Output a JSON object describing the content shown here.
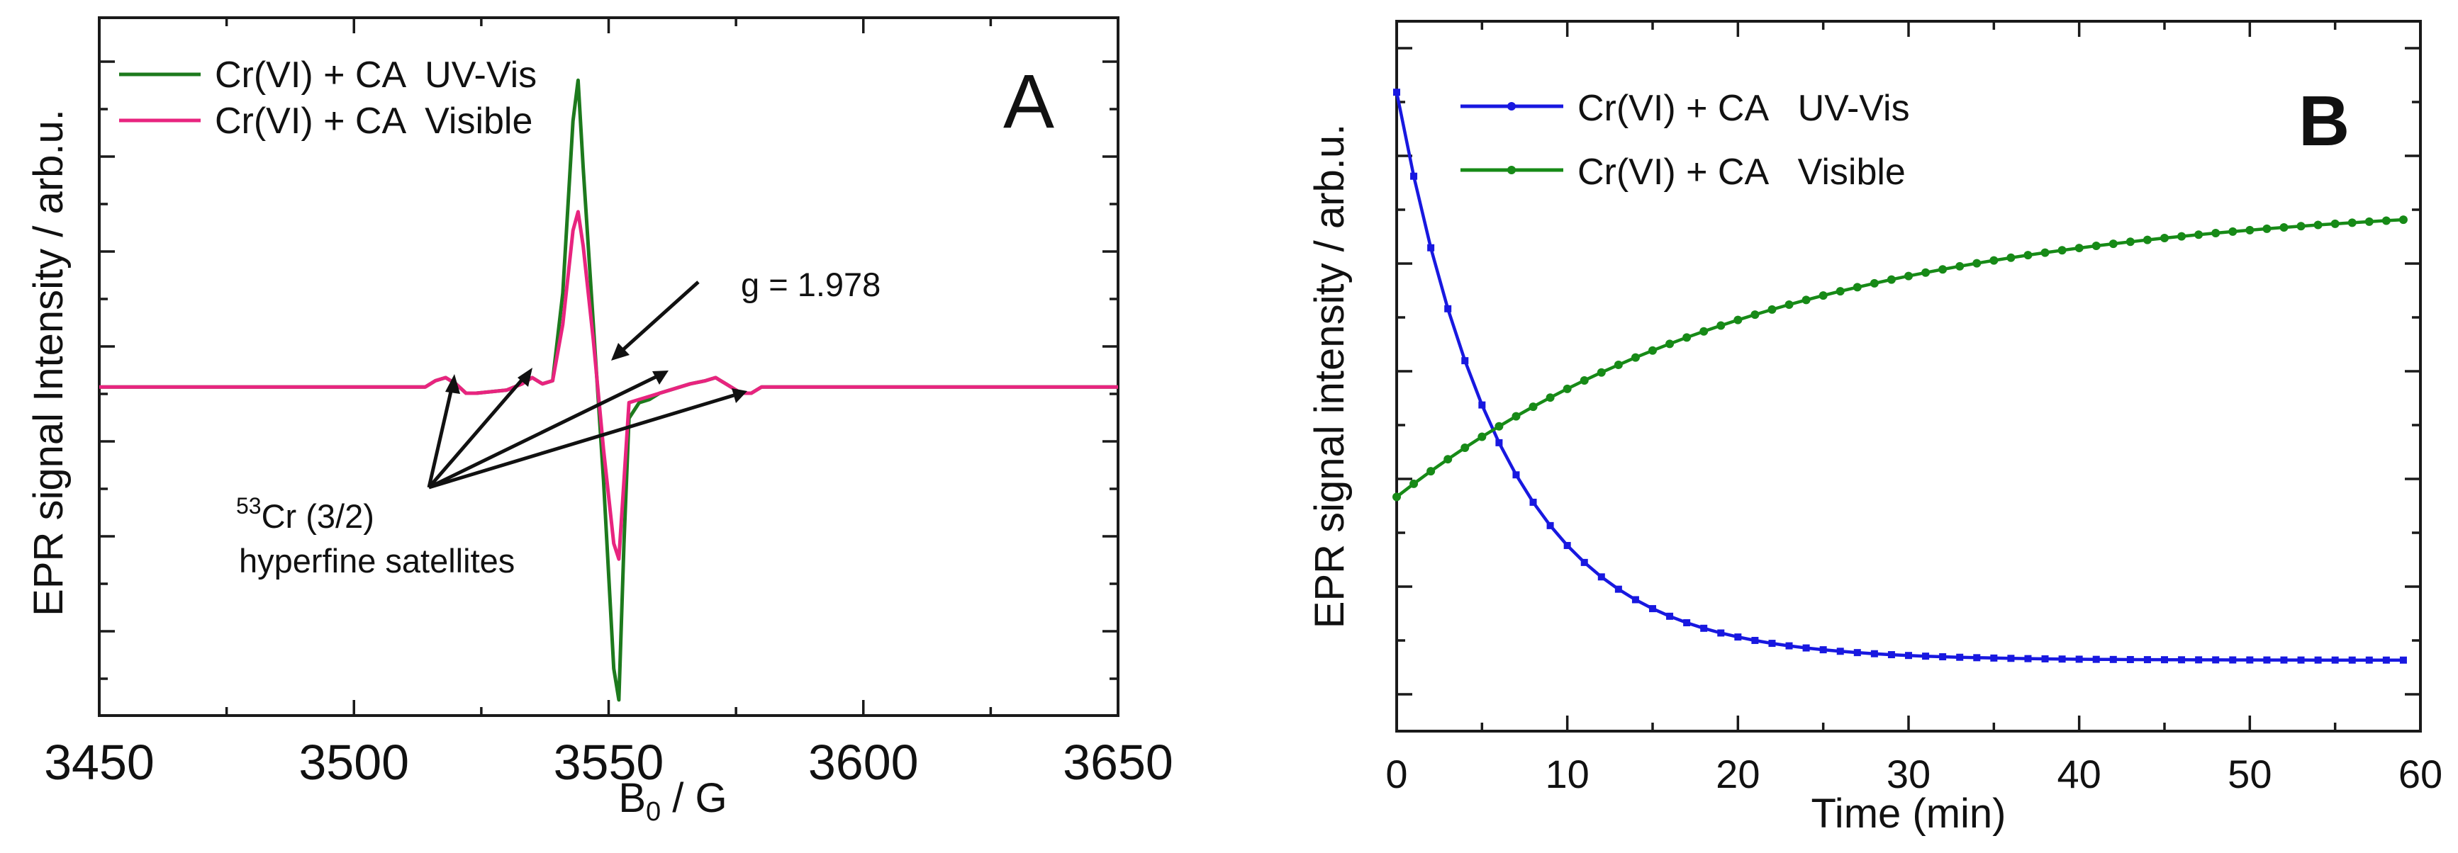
{
  "colors": {
    "green": "#1d7a1d",
    "pink": "#e8247f",
    "blue": "#1818e0",
    "green_b": "#178a17"
  },
  "chart_data": [
    {
      "type": "line",
      "panel_label": "A",
      "xlabel_base": "B",
      "xlabel_sub": "0",
      "xlabel_rest": " / G",
      "ylabel": "EPR signal Intensity / arb.u.",
      "xlim": [
        3450,
        3650
      ],
      "ylim": [
        -1.05,
        1.18
      ],
      "xticks": [
        "3450",
        "3500",
        "3550",
        "3600",
        "3650"
      ],
      "series": [
        {
          "name": "Cr(VI) + CA  UV-Vis",
          "color": "green",
          "x": [
            3450,
            3514,
            3516,
            3518,
            3520,
            3522,
            3524,
            3530,
            3533,
            3535,
            3537,
            3539,
            3541,
            3543,
            3544,
            3545,
            3547,
            3549,
            3551,
            3552,
            3553,
            3554,
            3556,
            3558,
            3560,
            3566,
            3569,
            3571,
            3573,
            3576,
            3578,
            3580,
            3650
          ],
          "y": [
            0,
            0,
            0.02,
            0.03,
            0.01,
            -0.02,
            -0.02,
            -0.01,
            0.01,
            0.03,
            0.01,
            0.02,
            0.3,
            0.85,
            0.98,
            0.7,
            0.2,
            -0.3,
            -0.9,
            -1.0,
            -0.5,
            -0.1,
            -0.05,
            -0.04,
            -0.02,
            0.01,
            0.02,
            0.03,
            0.01,
            -0.02,
            -0.02,
            0,
            0
          ]
        },
        {
          "name": "Cr(VI) + CA  Visible",
          "color": "pink",
          "x": [
            3450,
            3514,
            3516,
            3518,
            3520,
            3522,
            3524,
            3530,
            3533,
            3535,
            3537,
            3539,
            3541,
            3543,
            3544,
            3545,
            3547,
            3549,
            3551,
            3552,
            3553,
            3554,
            3556,
            3558,
            3560,
            3566,
            3569,
            3571,
            3573,
            3576,
            3578,
            3580,
            3650
          ],
          "y": [
            0,
            0,
            0.02,
            0.03,
            0.01,
            -0.02,
            -0.02,
            -0.01,
            0.01,
            0.03,
            0.01,
            0.02,
            0.2,
            0.5,
            0.56,
            0.45,
            0.15,
            -0.2,
            -0.5,
            -0.55,
            -0.3,
            -0.05,
            -0.04,
            -0.03,
            -0.02,
            0.01,
            0.02,
            0.03,
            0.01,
            -0.02,
            -0.02,
            0,
            0
          ]
        }
      ],
      "annotations": {
        "g_label": "g = 1.978",
        "sat_sup": "53",
        "sat_line1_rest": "Cr (3/2)",
        "sat_line2": "hyperfine satellites"
      }
    },
    {
      "type": "line",
      "panel_label": "B",
      "xlabel": "Time (min)",
      "ylabel": "EPR signal intensity / arb.u.",
      "xlim": [
        0,
        60
      ],
      "ylim": [
        0,
        1.0
      ],
      "xticks": [
        "0",
        "10",
        "20",
        "30",
        "40",
        "50",
        "60"
      ],
      "series": [
        {
          "name": "Cr(VI) + CA   UV-Vis",
          "color": "blue",
          "model": "decay",
          "start": 0.9,
          "end": 0.1,
          "rate": 0.16
        },
        {
          "name": "Cr(VI) + CA   Visible",
          "color": "green_b",
          "model": "rise",
          "start": 0.33,
          "end": 0.75,
          "rate": 0.045
        }
      ],
      "x_points": {
        "from": 0,
        "to": 59,
        "step": 1
      }
    }
  ]
}
